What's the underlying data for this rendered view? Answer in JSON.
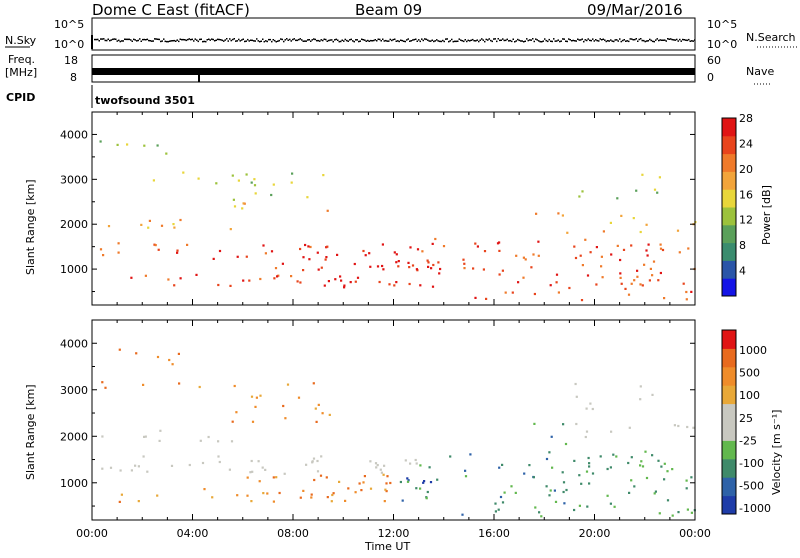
{
  "header": {
    "title": "Dome C East (fitACF)",
    "beam": "Beam 09",
    "date": "09/Mar/2016"
  },
  "sky_panel": {
    "left_label": "N.Sky",
    "left_ticks": [
      "10^5",
      "10^0"
    ],
    "right_ticks": [
      "10^5",
      "10^0"
    ],
    "right_label": "N.Search"
  },
  "freq_panel": {
    "left_label_top": "Freq.",
    "left_label_unit": "[MHz]",
    "left_ticks": [
      "18",
      "8"
    ],
    "right_ticks": [
      "60",
      "0"
    ],
    "right_label": "Nave"
  },
  "cpid": {
    "label": "CPID",
    "value": "twofsound 3501"
  },
  "chart_data": [
    {
      "type": "heatmap",
      "name": "power",
      "ylabel": "Slant Range [km]",
      "yticks": [
        1000,
        2000,
        3000,
        4000
      ],
      "ylim": [
        200,
        4500
      ],
      "xlim": [
        0,
        24
      ],
      "colorbar": {
        "label": "Power [dB]",
        "ticks": [
          4,
          8,
          12,
          16,
          20,
          24,
          28
        ],
        "colors": [
          "#1414e6",
          "#2a55a8",
          "#3a8c6e",
          "#5aa05a",
          "#9cc23c",
          "#e8d63a",
          "#f2a43a",
          "#ef7a2a",
          "#e8441c",
          "#e01414"
        ]
      }
    },
    {
      "type": "heatmap",
      "name": "velocity",
      "ylabel": "Slant Range [km]",
      "yticks": [
        1000,
        2000,
        3000,
        4000
      ],
      "ylim": [
        200,
        4500
      ],
      "xlim": [
        0,
        24
      ],
      "xlabel": "Time UT",
      "xticks": [
        "00:00",
        "04:00",
        "08:00",
        "12:00",
        "16:00",
        "20:00",
        "00:00"
      ],
      "colorbar": {
        "label": "Velocity [m s⁻¹]",
        "ticks": [
          "1000",
          "500",
          "100",
          "25",
          "-25",
          "-100",
          "-500",
          "-1000"
        ],
        "colors": [
          "#1e3ca8",
          "#2e62a8",
          "#3f8a6a",
          "#62b84e",
          "#c8c8c0",
          "#c8c8c0",
          "#e8a838",
          "#ef8c2a",
          "#e86a1e",
          "#e01414"
        ]
      }
    }
  ]
}
